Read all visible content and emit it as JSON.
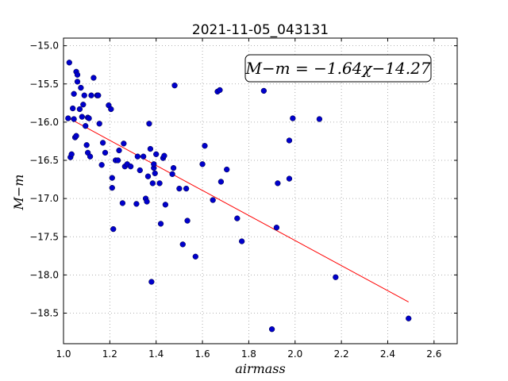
{
  "chart_data": {
    "type": "scatter",
    "title": "2021-11-05_043131",
    "xlabel": "airmass",
    "ylabel": "M−m",
    "xlim": [
      1.0,
      2.7
    ],
    "ylim": [
      -18.9,
      -14.9
    ],
    "xticks": [
      1.0,
      1.2,
      1.4,
      1.6,
      1.8,
      2.0,
      2.2,
      2.4,
      2.6
    ],
    "xtick_labels": [
      "1.0",
      "1.2",
      "1.4",
      "1.6",
      "1.8",
      "2.0",
      "2.2",
      "2.4",
      "2.6"
    ],
    "yticks": [
      -15.0,
      -15.5,
      -16.0,
      -16.5,
      -17.0,
      -17.5,
      -18.0,
      -18.5
    ],
    "ytick_labels": [
      "−15.0",
      "−15.5",
      "−16.0",
      "−16.5",
      "−17.0",
      "−17.5",
      "−18.0",
      "−18.5"
    ],
    "grid": true,
    "annotation": "M−m = −1.64χ−14.27",
    "fit_line": {
      "slope": -1.64,
      "intercept": -14.27,
      "x_range": [
        1.03,
        2.49
      ],
      "color": "#ff0000"
    },
    "point_color": "#0000cc",
    "points": [
      [
        1.02,
        -15.95
      ],
      [
        1.025,
        -15.22
      ],
      [
        1.03,
        -16.46
      ],
      [
        1.035,
        -16.42
      ],
      [
        1.04,
        -15.82
      ],
      [
        1.045,
        -15.96
      ],
      [
        1.045,
        -15.63
      ],
      [
        1.05,
        -16.2
      ],
      [
        1.055,
        -16.18
      ],
      [
        1.055,
        -15.34
      ],
      [
        1.06,
        -15.47
      ],
      [
        1.06,
        -15.38
      ],
      [
        1.07,
        -15.83
      ],
      [
        1.075,
        -15.55
      ],
      [
        1.08,
        -15.93
      ],
      [
        1.085,
        -15.77
      ],
      [
        1.09,
        -15.65
      ],
      [
        1.095,
        -16.05
      ],
      [
        1.1,
        -16.3
      ],
      [
        1.105,
        -16.4
      ],
      [
        1.105,
        -15.94
      ],
      [
        1.11,
        -15.95
      ],
      [
        1.115,
        -16.45
      ],
      [
        1.12,
        -15.65
      ],
      [
        1.13,
        -15.42
      ],
      [
        1.145,
        -15.65
      ],
      [
        1.15,
        -15.65
      ],
      [
        1.155,
        -16.02
      ],
      [
        1.165,
        -16.56
      ],
      [
        1.17,
        -16.27
      ],
      [
        1.18,
        -16.4
      ],
      [
        1.195,
        -15.78
      ],
      [
        1.205,
        -15.83
      ],
      [
        1.21,
        -16.86
      ],
      [
        1.21,
        -16.73
      ],
      [
        1.215,
        -17.4
      ],
      [
        1.225,
        -16.5
      ],
      [
        1.235,
        -16.5
      ],
      [
        1.24,
        -16.37
      ],
      [
        1.255,
        -17.06
      ],
      [
        1.26,
        -16.28
      ],
      [
        1.265,
        -16.58
      ],
      [
        1.275,
        -16.55
      ],
      [
        1.29,
        -16.58
      ],
      [
        1.315,
        -17.07
      ],
      [
        1.32,
        -16.45
      ],
      [
        1.33,
        -16.63
      ],
      [
        1.345,
        -16.45
      ],
      [
        1.355,
        -17.0
      ],
      [
        1.36,
        -17.04
      ],
      [
        1.365,
        -16.71
      ],
      [
        1.37,
        -16.02
      ],
      [
        1.375,
        -16.35
      ],
      [
        1.38,
        -18.09
      ],
      [
        1.385,
        -16.8
      ],
      [
        1.39,
        -16.6
      ],
      [
        1.39,
        -16.55
      ],
      [
        1.395,
        -16.67
      ],
      [
        1.4,
        -16.42
      ],
      [
        1.415,
        -16.8
      ],
      [
        1.42,
        -17.33
      ],
      [
        1.43,
        -16.47
      ],
      [
        1.435,
        -16.44
      ],
      [
        1.44,
        -17.08
      ],
      [
        1.47,
        -16.68
      ],
      [
        1.475,
        -16.6
      ],
      [
        1.48,
        -15.52
      ],
      [
        1.5,
        -16.87
      ],
      [
        1.515,
        -17.6
      ],
      [
        1.53,
        -16.87
      ],
      [
        1.535,
        -17.29
      ],
      [
        1.57,
        -17.76
      ],
      [
        1.6,
        -16.55
      ],
      [
        1.61,
        -16.31
      ],
      [
        1.645,
        -17.02
      ],
      [
        1.665,
        -15.6
      ],
      [
        1.675,
        -15.58
      ],
      [
        1.68,
        -16.78
      ],
      [
        1.705,
        -16.62
      ],
      [
        1.75,
        -17.26
      ],
      [
        1.77,
        -17.56
      ],
      [
        1.865,
        -15.59
      ],
      [
        1.9,
        -18.71
      ],
      [
        1.92,
        -17.38
      ],
      [
        1.925,
        -16.8
      ],
      [
        1.975,
        -16.24
      ],
      [
        1.975,
        -16.74
      ],
      [
        1.99,
        -15.95
      ],
      [
        2.105,
        -15.96
      ],
      [
        2.175,
        -18.03
      ],
      [
        2.49,
        -18.57
      ]
    ]
  }
}
